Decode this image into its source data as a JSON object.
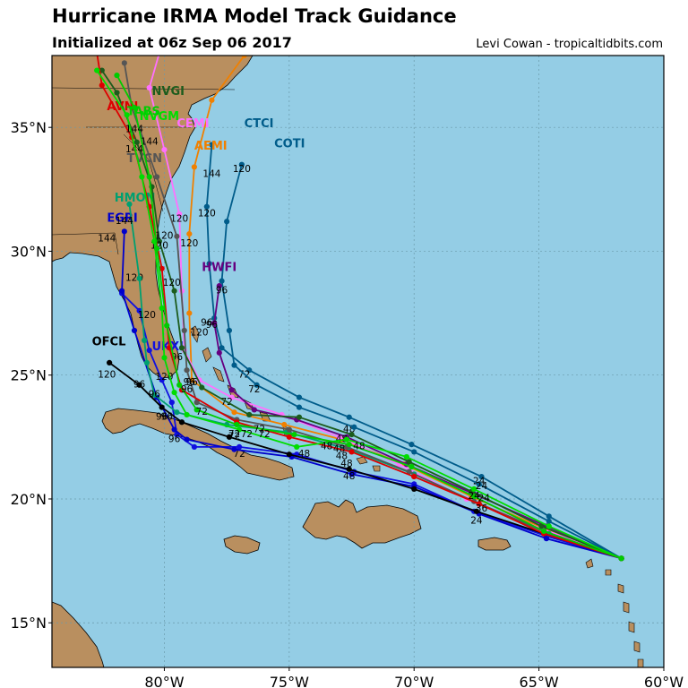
{
  "header": {
    "title": "Hurricane IRMA Model Track Guidance",
    "subtitle": "Initialized at 06z Sep 06 2017",
    "credit": "Levi Cowan - tropicaltidbits.com"
  },
  "map": {
    "lon_range": [
      -84.5,
      -60
    ],
    "lat_range": [
      13.2,
      37.9
    ],
    "ocean_color": "#94cde5",
    "land_color": "#b98f5f",
    "grid": true,
    "lon_ticks": [
      {
        "value": -80,
        "label": "80°W"
      },
      {
        "value": -75,
        "label": "75°W"
      },
      {
        "value": -70,
        "label": "70°W"
      },
      {
        "value": -65,
        "label": "65°W"
      },
      {
        "value": -60,
        "label": "60°W"
      }
    ],
    "lat_ticks": [
      {
        "value": 35,
        "label": "35°N"
      },
      {
        "value": 30,
        "label": "30°N"
      },
      {
        "value": 25,
        "label": "25°N"
      },
      {
        "value": 20,
        "label": "20°N"
      },
      {
        "value": 15,
        "label": "15°N"
      }
    ]
  },
  "tracks": [
    {
      "name": "CTCI",
      "color": "#005c8a",
      "label_at": [
        -76.8,
        35.0
      ],
      "points": [
        [
          -61.7,
          17.6
        ],
        [
          -64.6,
          19.3
        ],
        [
          -67.3,
          20.9
        ],
        [
          -70.1,
          22.2
        ],
        [
          -72.6,
          23.3
        ],
        [
          -74.6,
          24.1
        ],
        [
          -76.6,
          25.2
        ],
        [
          -77.7,
          26.1
        ],
        [
          -78.0,
          27.3
        ],
        [
          -78.2,
          29.5
        ],
        [
          -78.3,
          31.8
        ],
        [
          -78.1,
          34.3
        ]
      ],
      "hour_labels": [
        {
          "text": "24",
          "at": [
            -67.4,
            20.6
          ]
        },
        {
          "text": "48",
          "at": [
            -72.6,
            22.7
          ]
        },
        {
          "text": "72",
          "at": [
            -76.8,
            24.9
          ]
        },
        {
          "text": "96",
          "at": [
            -78.3,
            27.0
          ]
        },
        {
          "text": "120",
          "at": [
            -78.3,
            31.4
          ]
        }
      ]
    },
    {
      "name": "COTI",
      "color": "#005c8a",
      "label_at": [
        -75.6,
        34.2
      ],
      "points": [
        [
          -61.7,
          17.6
        ],
        [
          -64.6,
          19.1
        ],
        [
          -67.4,
          20.6
        ],
        [
          -70.0,
          21.9
        ],
        [
          -72.4,
          22.9
        ],
        [
          -74.6,
          23.7
        ],
        [
          -76.3,
          24.6
        ],
        [
          -77.2,
          25.4
        ],
        [
          -77.4,
          26.8
        ],
        [
          -77.7,
          28.8
        ],
        [
          -77.5,
          31.2
        ],
        [
          -76.9,
          33.5
        ]
      ],
      "hour_labels": [
        {
          "text": "72",
          "at": [
            -76.4,
            24.3
          ]
        },
        {
          "text": "120",
          "at": [
            -76.9,
            33.2
          ]
        }
      ]
    },
    {
      "name": "AEMI",
      "color": "#f08000",
      "label_at": [
        -78.8,
        34.1
      ],
      "points": [
        [
          -61.7,
          17.6
        ],
        [
          -64.8,
          18.8
        ],
        [
          -67.7,
          20.1
        ],
        [
          -70.4,
          21.4
        ],
        [
          -72.9,
          22.4
        ],
        [
          -75.2,
          23.0
        ],
        [
          -77.2,
          23.5
        ],
        [
          -78.9,
          24.8
        ],
        [
          -79.0,
          27.5
        ],
        [
          -79.0,
          30.7
        ],
        [
          -78.8,
          33.4
        ],
        [
          -78.1,
          36.1
        ],
        [
          -76.8,
          37.9
        ]
      ],
      "hour_labels": [
        {
          "text": "144",
          "at": [
            -78.1,
            33.0
          ]
        }
      ]
    },
    {
      "name": "CEMI",
      "color": "#ff70ff",
      "label_at": [
        -79.5,
        35.0
      ],
      "points": [
        [
          -61.7,
          17.6
        ],
        [
          -64.9,
          18.8
        ],
        [
          -67.9,
          20.0
        ],
        [
          -70.6,
          21.4
        ],
        [
          -73.0,
          22.5
        ],
        [
          -75.3,
          23.4
        ],
        [
          -77.3,
          24.1
        ],
        [
          -78.6,
          24.8
        ],
        [
          -79.2,
          26.0
        ],
        [
          -79.3,
          28.4
        ],
        [
          -79.4,
          31.5
        ],
        [
          -80.0,
          34.1
        ],
        [
          -80.6,
          36.6
        ],
        [
          -80.2,
          38.0
        ]
      ],
      "hour_labels": [
        {
          "text": "72",
          "at": [
            -77.5,
            23.8
          ]
        },
        {
          "text": "96",
          "at": [
            -79.5,
            25.6
          ]
        },
        {
          "text": "120",
          "at": [
            -79.4,
            31.2
          ]
        }
      ]
    },
    {
      "name": "HWFI",
      "color": "#660080",
      "label_at": [
        -78.5,
        29.2
      ],
      "points": [
        [
          -61.7,
          17.6
        ],
        [
          -64.7,
          18.9
        ],
        [
          -67.6,
          20.2
        ],
        [
          -70.3,
          21.4
        ],
        [
          -72.7,
          22.5
        ],
        [
          -74.7,
          23.2
        ],
        [
          -76.4,
          23.6
        ],
        [
          -77.3,
          24.4
        ],
        [
          -77.8,
          25.9
        ],
        [
          -78.0,
          27.1
        ],
        [
          -77.8,
          28.6
        ]
      ],
      "hour_labels": [
        {
          "text": "96",
          "at": [
            -78.1,
            26.9
          ]
        },
        {
          "text": "96",
          "at": [
            -77.7,
            28.3
          ]
        }
      ]
    },
    {
      "name": "UKXI",
      "color": "#1010e0",
      "label_at": [
        -80.5,
        26.0
      ],
      "points": [
        [
          -61.7,
          17.6
        ],
        [
          -64.7,
          18.5
        ],
        [
          -67.6,
          19.5
        ],
        [
          -70.0,
          20.6
        ],
        [
          -72.4,
          21.1
        ],
        [
          -74.7,
          21.8
        ],
        [
          -77.0,
          22.1
        ],
        [
          -78.8,
          22.1
        ],
        [
          -79.5,
          22.6
        ],
        [
          -79.7,
          23.9
        ],
        [
          -80.1,
          24.8
        ],
        [
          -80.6,
          26.0
        ],
        [
          -81.0,
          27.6
        ],
        [
          -81.7,
          28.3
        ]
      ],
      "hour_labels": [
        {
          "text": "72",
          "at": [
            -77.0,
            21.7
          ]
        },
        {
          "text": "96",
          "at": [
            -79.6,
            22.3
          ]
        },
        {
          "text": "120",
          "at": [
            -80.0,
            24.8
          ]
        }
      ]
    },
    {
      "name": "EGRI",
      "color": "#0000cc",
      "label_at": [
        -82.3,
        31.2
      ],
      "points": [
        [
          -61.7,
          17.6
        ],
        [
          -64.7,
          18.4
        ],
        [
          -67.4,
          19.4
        ],
        [
          -70.0,
          20.5
        ],
        [
          -72.5,
          21.0
        ],
        [
          -74.9,
          21.7
        ],
        [
          -77.2,
          22.0
        ],
        [
          -79.1,
          22.4
        ],
        [
          -79.6,
          22.8
        ],
        [
          -80.3,
          24.1
        ],
        [
          -81.2,
          26.8
        ],
        [
          -81.7,
          28.4
        ],
        [
          -81.6,
          30.8
        ]
      ],
      "hour_labels": [
        {
          "text": "120",
          "at": [
            -81.2,
            28.8
          ]
        },
        {
          "text": "144",
          "at": [
            -82.3,
            30.4
          ]
        }
      ]
    },
    {
      "name": "HMON",
      "color": "#00a070",
      "label_at": [
        -82.0,
        32.0
      ],
      "points": [
        [
          -61.7,
          17.6
        ],
        [
          -64.6,
          18.6
        ],
        [
          -67.4,
          19.8
        ],
        [
          -70.0,
          21.0
        ],
        [
          -72.6,
          22.0
        ],
        [
          -75.1,
          22.7
        ],
        [
          -77.5,
          23.0
        ],
        [
          -79.5,
          23.5
        ],
        [
          -80.4,
          24.2
        ],
        [
          -80.7,
          25.5
        ],
        [
          -80.8,
          26.4
        ],
        [
          -81.0,
          28.9
        ],
        [
          -81.4,
          31.9
        ]
      ],
      "hour_labels": [
        {
          "text": "96",
          "at": [
            -81.0,
            24.5
          ]
        },
        {
          "text": "144",
          "at": [
            -81.6,
            31.1
          ]
        }
      ]
    },
    {
      "name": "OFCL",
      "color": "#000000",
      "label_at": [
        -82.9,
        26.2
      ],
      "points": [
        [
          -61.7,
          17.6
        ],
        [
          -64.8,
          18.6
        ],
        [
          -67.5,
          19.5
        ],
        [
          -70.0,
          20.4
        ],
        [
          -72.6,
          21.2
        ],
        [
          -75.0,
          21.8
        ],
        [
          -77.4,
          22.5
        ],
        [
          -79.3,
          23.1
        ],
        [
          -80.1,
          23.7
        ],
        [
          -81.0,
          24.6
        ],
        [
          -82.2,
          25.5
        ]
      ],
      "hour_labels": [
        {
          "text": "48",
          "at": [
            -72.6,
            20.8
          ]
        },
        {
          "text": "96",
          "at": [
            -80.1,
            23.2
          ]
        },
        {
          "text": "120",
          "at": [
            -82.3,
            24.9
          ]
        }
      ]
    },
    {
      "name": "TVCN",
      "color": "#555555",
      "label_at": [
        -81.5,
        33.6
      ],
      "points": [
        [
          -61.7,
          17.6
        ],
        [
          -64.8,
          18.7
        ],
        [
          -67.6,
          19.9
        ],
        [
          -70.2,
          21.1
        ],
        [
          -72.7,
          22.1
        ],
        [
          -75.0,
          22.8
        ],
        [
          -77.1,
          23.2
        ],
        [
          -78.7,
          23.9
        ],
        [
          -79.1,
          25.2
        ],
        [
          -79.2,
          26.8
        ],
        [
          -79.5,
          30.6
        ],
        [
          -80.3,
          33.0
        ],
        [
          -81.3,
          35.8
        ],
        [
          -81.6,
          37.6
        ]
      ],
      "hour_labels": [
        {
          "text": "96",
          "at": [
            -78.9,
            24.6
          ]
        },
        {
          "text": "120",
          "at": [
            -79.0,
            30.2
          ]
        }
      ]
    },
    {
      "name": "NVGI",
      "color": "#1c5c1c",
      "label_at": [
        -80.5,
        36.3
      ],
      "points": [
        [
          -61.7,
          17.6
        ],
        [
          -64.9,
          18.9
        ],
        [
          -67.7,
          20.3
        ],
        [
          -70.2,
          21.5
        ],
        [
          -72.5,
          22.6
        ],
        [
          -74.6,
          23.3
        ],
        [
          -76.6,
          23.4
        ],
        [
          -78.5,
          24.5
        ],
        [
          -79.3,
          26.1
        ],
        [
          -79.6,
          28.4
        ],
        [
          -80.2,
          30.4
        ],
        [
          -80.5,
          32.6
        ],
        [
          -81.1,
          34.4
        ],
        [
          -81.9,
          36.4
        ],
        [
          -82.5,
          37.3
        ]
      ],
      "hour_labels": [
        {
          "text": "48",
          "at": [
            -72.9,
            22.3
          ]
        },
        {
          "text": "120",
          "at": [
            -80.2,
            30.1
          ]
        }
      ]
    },
    {
      "name": "AVNI",
      "color": "#dd0000",
      "label_at": [
        -82.3,
        35.7
      ],
      "points": [
        [
          -61.7,
          17.6
        ],
        [
          -64.8,
          18.6
        ],
        [
          -67.4,
          19.8
        ],
        [
          -70.0,
          20.9
        ],
        [
          -72.5,
          21.9
        ],
        [
          -75.0,
          22.5
        ],
        [
          -77.1,
          23.1
        ],
        [
          -79.3,
          24.4
        ],
        [
          -79.8,
          26.1
        ],
        [
          -80.1,
          29.3
        ],
        [
          -80.6,
          31.8
        ],
        [
          -81.3,
          34.6
        ],
        [
          -82.5,
          36.7
        ],
        [
          -82.7,
          38.0
        ]
      ],
      "hour_labels": [
        {
          "text": "120",
          "at": [
            -79.7,
            28.6
          ]
        },
        {
          "text": "144",
          "at": [
            -81.2,
            34.0
          ]
        }
      ]
    },
    {
      "name": "NVGM",
      "color": "#00dd00",
      "label_at": [
        -81.0,
        35.3
      ],
      "points": [
        [
          -61.7,
          17.6
        ],
        [
          -64.6,
          18.9
        ],
        [
          -67.6,
          20.4
        ],
        [
          -70.3,
          21.7
        ],
        [
          -72.7,
          22.4
        ],
        [
          -74.7,
          22.1
        ],
        [
          -77.0,
          22.8
        ],
        [
          -79.1,
          23.4
        ],
        [
          -79.6,
          24.3
        ],
        [
          -80.0,
          25.7
        ],
        [
          -80.1,
          27.7
        ],
        [
          -80.4,
          30.4
        ],
        [
          -80.9,
          33.0
        ],
        [
          -81.5,
          35.5
        ],
        [
          -82.7,
          37.3
        ]
      ],
      "hour_labels": [
        {
          "text": "48",
          "at": [
            -74.4,
            21.7
          ]
        },
        {
          "text": "72",
          "at": [
            -77.2,
            22.4
          ]
        },
        {
          "text": "144",
          "at": [
            -80.6,
            34.3
          ]
        }
      ]
    },
    {
      "name": "TABS",
      "color": "#00cc00",
      "label_at": [
        -81.5,
        35.5
      ],
      "points": [
        [
          -61.7,
          17.6
        ],
        [
          -64.8,
          18.7
        ],
        [
          -67.6,
          20.1
        ],
        [
          -70.1,
          21.3
        ],
        [
          -72.6,
          22.2
        ],
        [
          -74.8,
          22.6
        ],
        [
          -77.1,
          23.0
        ],
        [
          -78.7,
          23.6
        ],
        [
          -79.4,
          24.6
        ],
        [
          -79.9,
          27.0
        ],
        [
          -80.3,
          30.1
        ],
        [
          -80.6,
          33.0
        ],
        [
          -81.2,
          35.8
        ],
        [
          -81.9,
          37.1
        ]
      ],
      "hour_labels": [
        {
          "text": "72",
          "at": [
            -76.0,
            22.5
          ]
        },
        {
          "text": "144",
          "at": [
            -81.2,
            34.8
          ]
        }
      ]
    }
  ],
  "map_labels": {
    "extra_hour_labels": [
      "24",
      "24",
      "24",
      "24",
      "36",
      "48",
      "48",
      "48",
      "48",
      "48",
      "72",
      "72",
      "72",
      "72",
      "96",
      "96",
      "96",
      "96",
      "120",
      "120",
      "120"
    ]
  }
}
